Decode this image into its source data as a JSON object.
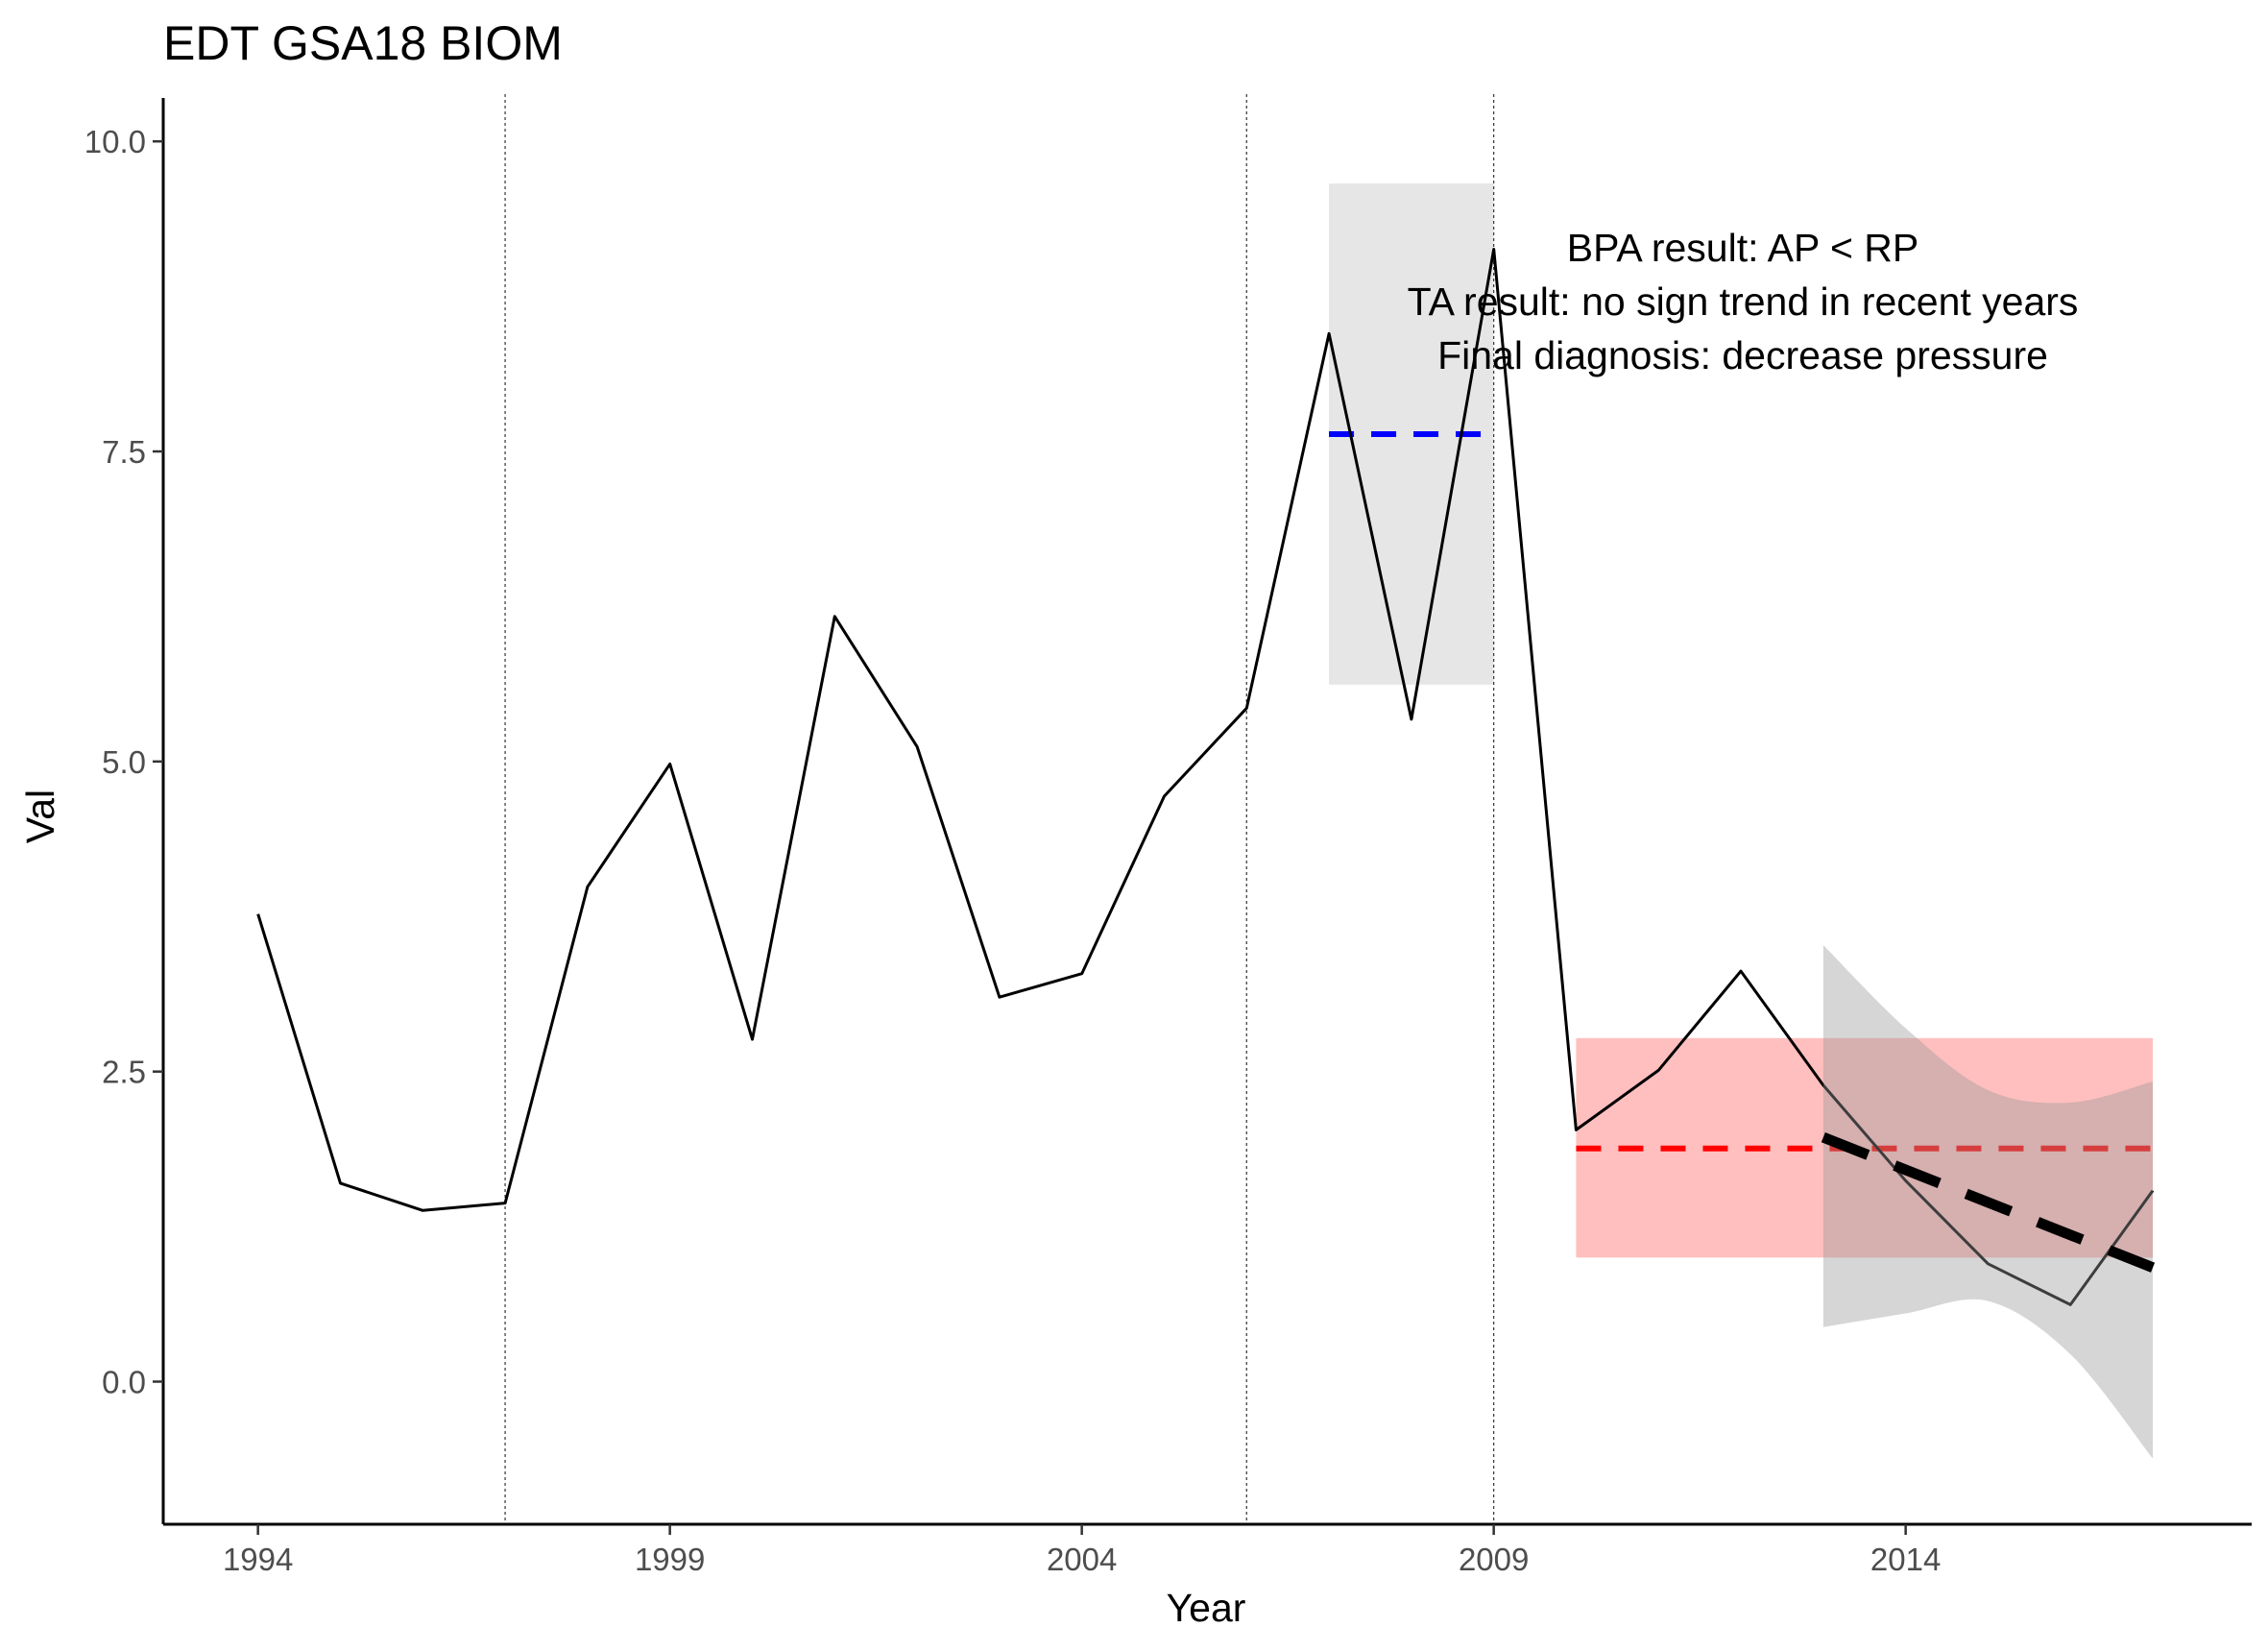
{
  "chart_data": {
    "type": "line",
    "title": "EDT GSA18 BIOM",
    "xlabel": "Year",
    "ylabel": "Val",
    "xlim": [
      1992.85,
      2018.2
    ],
    "ylim": [
      -1.15,
      10.35
    ],
    "x_ticks": [
      1994,
      1999,
      2004,
      2009,
      2014
    ],
    "x_tick_labels": [
      "1994",
      "1999",
      "2004",
      "2009",
      "2014"
    ],
    "y_ticks": [
      0.0,
      2.5,
      5.0,
      7.5,
      10.0
    ],
    "y_tick_labels": [
      "0.0",
      "2.5",
      "5.0",
      "7.5",
      "10.0"
    ],
    "grid": false,
    "series": [
      {
        "color": "#000000",
        "x": [
          1994,
          1995,
          1996,
          1997,
          1998,
          1999,
          2000,
          2001,
          2002,
          2003,
          2004,
          2005,
          2006,
          2007,
          2008,
          2009,
          2010,
          2011,
          2012,
          2013,
          2014,
          2015,
          2016,
          2017
        ],
        "values": [
          3.77,
          1.6,
          1.38,
          1.44,
          3.99,
          4.98,
          2.76,
          6.17,
          5.12,
          3.1,
          3.29,
          4.72,
          5.43,
          8.45,
          5.34,
          9.13,
          2.03,
          2.51,
          3.31,
          2.39,
          1.62,
          0.95,
          0.62,
          1.54
        ]
      }
    ],
    "vlines": {
      "x": [
        1997,
        2006,
        2009
      ],
      "color": "#333333",
      "style": "dotted"
    },
    "reference_period": {
      "x_range": [
        2007,
        2009
      ],
      "y_range": [
        5.62,
        9.66
      ],
      "mean": 7.64,
      "band_color": "#e6e6e6",
      "line_color": "#0000ff"
    },
    "assessment_period": {
      "x_range": [
        2010,
        2017
      ],
      "y_range": [
        1.0,
        2.77
      ],
      "mean": 1.88,
      "band_color": "#ff0000",
      "line_color": "#ff0000"
    },
    "trend": {
      "x": [
        2013,
        2017
      ],
      "y": [
        1.97,
        0.92
      ],
      "color": "#000000",
      "ci_x": [
        2013,
        2014,
        2015,
        2016,
        2017
      ],
      "ci_upper": [
        3.52,
        2.85,
        2.35,
        2.25,
        2.42
      ],
      "ci_lower": [
        0.44,
        0.55,
        0.65,
        0.22,
        -0.62
      ],
      "ci_color": "#999999"
    },
    "annotations": [
      "BPA result: AP < RP",
      "TA result: no sign trend in recent years",
      "Final diagnosis: decrease pressure"
    ]
  }
}
